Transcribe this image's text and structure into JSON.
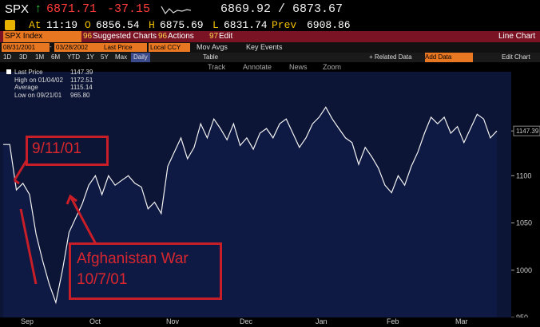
{
  "ticker": {
    "symbol": "SPX",
    "arrow": "↑",
    "last": "6871.71",
    "change": "-37.15",
    "bid_ask": "6869.92 / 6873.67",
    "at_label": "At",
    "time": "11:19",
    "o_label": "O",
    "open": "6856.54",
    "h_label": "H",
    "high": "6875.69",
    "l_label": "L",
    "low": "6831.74",
    "prev_label": "Prev",
    "prev": "6908.86"
  },
  "function_bar": {
    "security": "SPX Index",
    "suggested": "Suggested Charts",
    "suggested_num": "96",
    "actions": "Actions",
    "actions_num": "96",
    "edit": "Edit",
    "edit_num": "97",
    "chart_type": "Line Chart"
  },
  "settings_bar": {
    "start_date": "08/31/2001",
    "end_date": "03/28/2002",
    "field": "Last Price",
    "currency": "Local CCY",
    "mov_avgs": "Mov Avgs",
    "key_events": "Key Events"
  },
  "period_bar": {
    "periods": [
      "1D",
      "3D",
      "1M",
      "6M",
      "YTD",
      "1Y",
      "5Y",
      "Max"
    ],
    "frequency": "Daily",
    "table": "Table",
    "related_data": "+ Related Data",
    "add_data": "Add Data",
    "edit_chart": "Edit Chart"
  },
  "toolbar": {
    "track": "Track",
    "annotate": "Annotate",
    "news": "News",
    "zoom": "Zoom"
  },
  "legend": {
    "last_price_label": "Last Price",
    "last_price": "1147.39",
    "high_label": "High on 01/04/02",
    "high": "1172.51",
    "avg_label": "Average",
    "avg": "1115.14",
    "low_label": "Low on 09/21/01",
    "low": "965.80"
  },
  "annotations": {
    "event1": "9/11/01",
    "event2_line1": "Afghanistan War",
    "event2_line2": "10/7/01"
  },
  "colors": {
    "accent_red": "#c81e28",
    "function_bar": "#7a1424",
    "input_orange": "#e87722",
    "plot_bg": "#0c1535"
  },
  "chart_data": {
    "type": "line",
    "series": [
      {
        "name": "",
        "values": [
          1133,
          1133,
          1085,
          1092,
          1080,
          1038,
          1010,
          985,
          965.8,
          1000,
          1040,
          1055,
          1070,
          1090,
          1100,
          1080,
          1100,
          1090,
          1095,
          1100,
          1092,
          1088,
          1065,
          1072,
          1060,
          1110,
          1125,
          1140,
          1118,
          1130,
          1155,
          1140,
          1160,
          1150,
          1138,
          1155,
          1132,
          1140,
          1128,
          1145,
          1150,
          1140,
          1155,
          1160,
          1145,
          1130,
          1140,
          1155,
          1162,
          1172.51,
          1160,
          1150,
          1140,
          1135,
          1112,
          1130,
          1120,
          1108,
          1090,
          1082,
          1100,
          1090,
          1110,
          1125,
          1145,
          1162,
          1155,
          1162,
          1145,
          1152,
          1135,
          1150,
          1165,
          1160,
          1140,
          1147.39
        ]
      }
    ],
    "ylim": [
      950,
      1210
    ],
    "yticks": [
      "950",
      "1000",
      "1050",
      "1100",
      "1147.39"
    ],
    "xticks": [
      "Sep",
      "Oct",
      "Nov",
      "Dec",
      "Jan",
      "Feb",
      "Mar"
    ]
  }
}
